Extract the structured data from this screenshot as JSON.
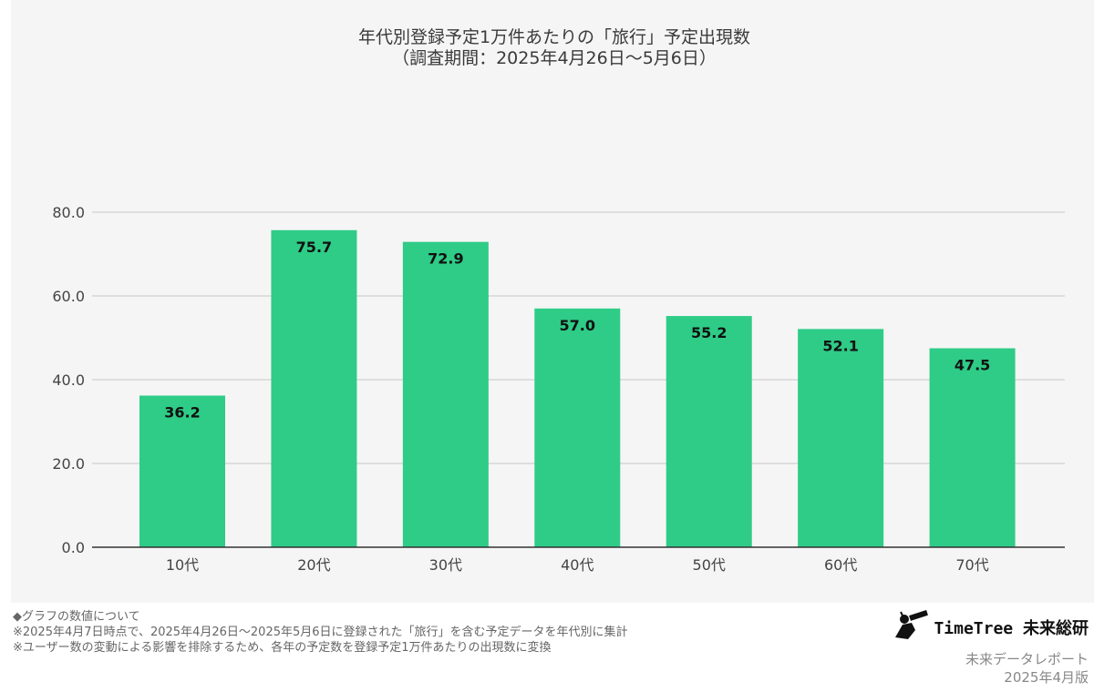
{
  "chart_data": {
    "type": "bar",
    "title": "年代別登録予定1万件あたりの「旅行」予定出現数",
    "subtitle": "（調査期間：2025年4月26日〜5月6日）",
    "xlabel": "",
    "ylabel": "",
    "categories": [
      "10代",
      "20代",
      "30代",
      "40代",
      "50代",
      "60代",
      "70代"
    ],
    "values": [
      36.2,
      75.7,
      72.9,
      57.0,
      55.2,
      52.1,
      47.5
    ],
    "value_labels": [
      "36.2",
      "75.7",
      "72.9",
      "57.0",
      "55.2",
      "52.1",
      "47.5"
    ],
    "ylim": [
      0,
      80
    ],
    "yticks": [
      "0.0",
      "20.0",
      "40.0",
      "60.0",
      "80.0"
    ],
    "grid": true,
    "legend": "none",
    "bar_color": "#2ecc87"
  },
  "notes": [
    "◆グラフの数値について",
    "※2025年4月7日時点で、2025年4月26日〜2025年5月6日に登録された「旅行」を含む予定データを年代別に集計",
    "※ユーザー数の変動による影響を排除するため、各年の予定数を登録予定1万件あたりの出現数に変換"
  ],
  "brand": {
    "logo_icon": "telescope-person-icon",
    "name": "TimeTree 未来総研",
    "report": "未来データレポート",
    "edition": "2025年4月版"
  }
}
